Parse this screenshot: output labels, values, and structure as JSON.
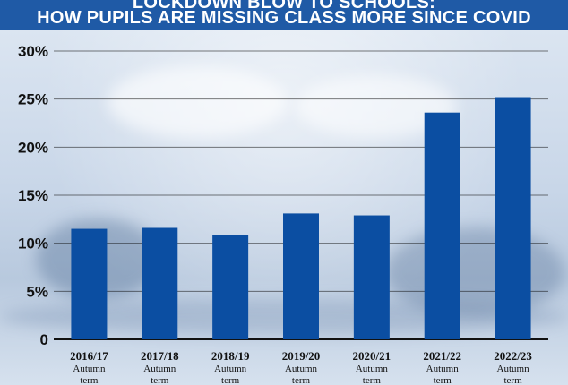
{
  "title": {
    "line1": "LOCKDOWN BLOW TO SCHOOLS:",
    "line2": "HOW PUPILS ARE MISSING CLASS MORE SINCE COVID"
  },
  "colors": {
    "header_bg": "#1f5aa6",
    "bar": "#0b4ea2",
    "gridline": "#111111"
  },
  "chart_data": {
    "type": "bar",
    "categories": [
      "2016/17",
      "2017/18",
      "2018/19",
      "2019/20",
      "2020/21",
      "2021/22",
      "2022/23"
    ],
    "category_subtitle_lines": [
      "Autumn",
      "term"
    ],
    "values": [
      11.5,
      11.6,
      10.9,
      13.1,
      12.9,
      23.6,
      25.2
    ],
    "y_tick_labels": [
      "0",
      "5%",
      "10%",
      "15%",
      "20%",
      "25%",
      "30%"
    ],
    "ylim": [
      0,
      30
    ],
    "ytick_step": 5,
    "grid": true
  }
}
